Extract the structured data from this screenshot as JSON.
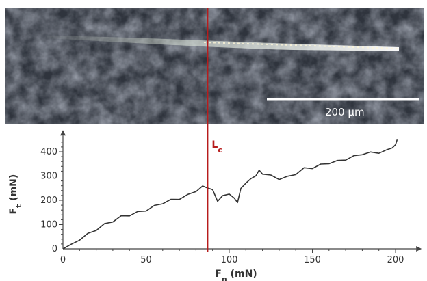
{
  "scale_bar": {
    "label": "200 µm"
  },
  "critical_load": {
    "label": "L",
    "subscript": "c",
    "x_value": 87
  },
  "chart_data": {
    "type": "line",
    "xlabel": {
      "main": "F",
      "sub": "n",
      "unit": " (mN)"
    },
    "ylabel": {
      "main": "F",
      "sub": "t",
      "unit": " (mN)"
    },
    "xlim": [
      0,
      205
    ],
    "ylim": [
      0,
      450
    ],
    "xticks": [
      0,
      50,
      100,
      150,
      200
    ],
    "yticks": [
      0,
      100,
      200,
      300,
      400
    ],
    "grid": false,
    "series": [
      {
        "color": "#333333",
        "x": [
          0,
          5,
          10,
          15,
          20,
          25,
          30,
          35,
          40,
          45,
          50,
          55,
          60,
          65,
          70,
          75,
          80,
          84,
          87,
          90,
          93,
          96,
          100,
          103,
          105,
          107,
          110,
          113,
          116,
          118,
          120,
          125,
          130,
          135,
          140,
          145,
          150,
          155,
          160,
          165,
          170,
          175,
          180,
          185,
          190,
          195,
          198,
          200,
          201
        ],
        "y": [
          0,
          15,
          40,
          60,
          80,
          100,
          115,
          132,
          140,
          150,
          160,
          175,
          190,
          200,
          208,
          220,
          240,
          255,
          255,
          240,
          200,
          215,
          230,
          205,
          195,
          245,
          275,
          285,
          305,
          320,
          312,
          300,
          290,
          295,
          310,
          330,
          335,
          345,
          355,
          360,
          370,
          380,
          392,
          395,
          398,
          405,
          420,
          425,
          450
        ]
      }
    ]
  }
}
